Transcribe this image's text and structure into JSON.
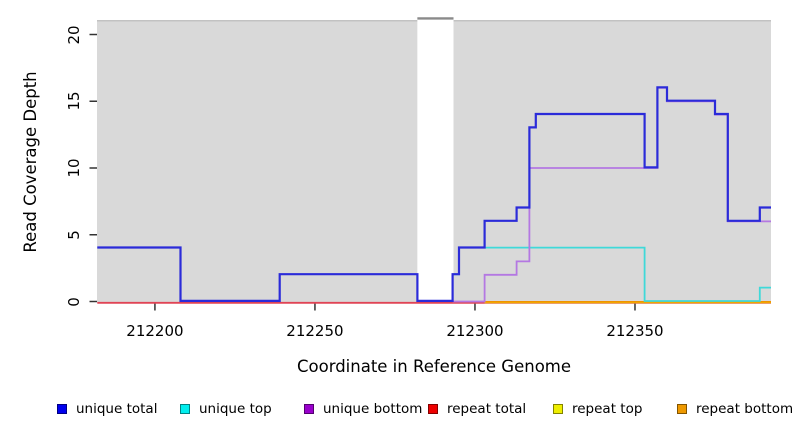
{
  "chart_data": {
    "type": "line",
    "style": "step",
    "title": "",
    "xlabel": "Coordinate in Reference Genome",
    "ylabel": "Read Coverage Depth",
    "xlim": [
      212181.9,
      212392.5
    ],
    "ylim": [
      0,
      21.1
    ],
    "x_ticks": [
      212200,
      212250,
      212300,
      212350
    ],
    "x_tick_labels": [
      "212200",
      "212250",
      "212300",
      "212350"
    ],
    "y_ticks": [
      0,
      5,
      10,
      15,
      20
    ],
    "y_tick_labels": [
      "0",
      "5",
      "10",
      "15",
      "20"
    ],
    "grid": false,
    "legend_position": "bottom",
    "plot_background": "#d9d9d9",
    "masked_region": {
      "start": 212282,
      "end": 212293.3,
      "fill": "#ffffff",
      "cap_depth": 21.2,
      "cap_color": "#8a8a8a"
    },
    "series": [
      {
        "name": "unique total",
        "line_color": "#2b2bd9",
        "legend_color": "#0000ee",
        "segments": [
          [
            212182,
            212208,
            4
          ],
          [
            212208,
            212239,
            0
          ],
          [
            212239,
            212282,
            2
          ],
          [
            212282,
            212293,
            0
          ],
          [
            212293,
            212295,
            2
          ],
          [
            212295,
            212303,
            4
          ],
          [
            212303,
            212313,
            6
          ],
          [
            212313,
            212317,
            7
          ],
          [
            212317,
            212319,
            13
          ],
          [
            212319,
            212353,
            14
          ],
          [
            212353,
            212357,
            10
          ],
          [
            212357,
            212360,
            16
          ],
          [
            212360,
            212375,
            15
          ],
          [
            212375,
            212379,
            14
          ],
          [
            212379,
            212389,
            6
          ],
          [
            212389,
            212392.5,
            7
          ]
        ]
      },
      {
        "name": "unique top",
        "line_color": "#3fd9d9",
        "legend_color": "#00eeee",
        "segments": [
          [
            212293,
            212295,
            2
          ],
          [
            212295,
            212353,
            4
          ],
          [
            212353,
            212389,
            0
          ],
          [
            212389,
            212392.5,
            1
          ]
        ]
      },
      {
        "name": "unique bottom",
        "line_color": "#b478e2",
        "legend_color": "#9900cc",
        "segments": [
          [
            212293,
            212303,
            0
          ],
          [
            212303,
            212313,
            2
          ],
          [
            212313,
            212317,
            3
          ],
          [
            212317,
            212357,
            10
          ],
          [
            212357,
            212360,
            16
          ],
          [
            212360,
            212375,
            15
          ],
          [
            212375,
            212379,
            14
          ],
          [
            212379,
            212392.5,
            6
          ]
        ]
      },
      {
        "name": "repeat total",
        "line_color": "#e04455",
        "legend_color": "#ee0000",
        "segments": [
          [
            212182,
            212392.5,
            0
          ]
        ]
      },
      {
        "name": "repeat top",
        "line_color": "#eded00",
        "legend_color": "#eeee00",
        "segments": [
          [
            212303,
            212392.5,
            0
          ]
        ]
      },
      {
        "name": "repeat bottom",
        "line_color": "#f09200",
        "legend_color": "#ee9900",
        "segments": [
          [
            212303,
            212392.5,
            0
          ]
        ]
      }
    ]
  }
}
